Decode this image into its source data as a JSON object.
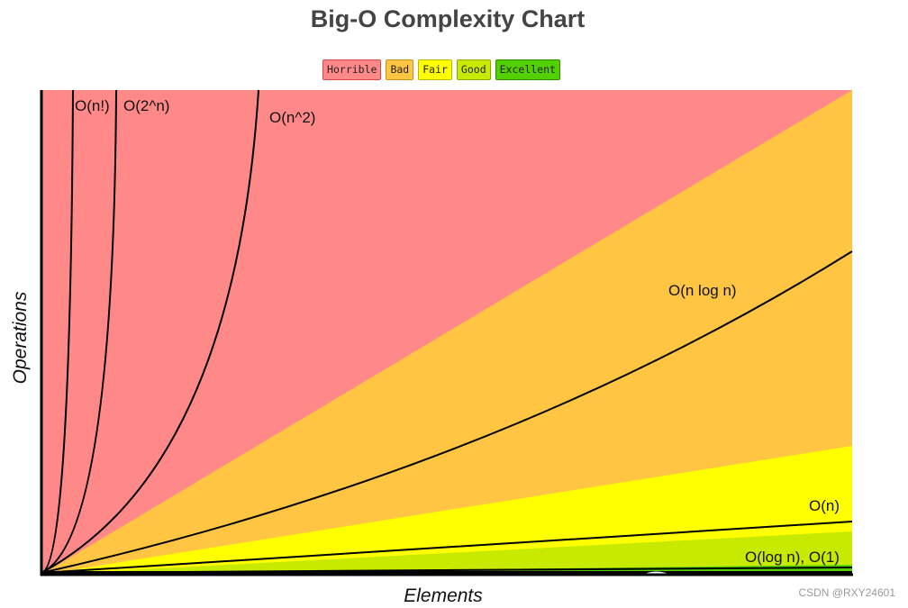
{
  "title": "Big-O Complexity Chart",
  "legend": [
    {
      "label": "Horrible",
      "color": "#ff8989",
      "border": "#d84848"
    },
    {
      "label": "Bad",
      "color": "#ffc543",
      "border": "#c8911a"
    },
    {
      "label": "Fair",
      "color": "#ffff00",
      "border": "#b8b800"
    },
    {
      "label": "Good",
      "color": "#c8ea00",
      "border": "#8fa800"
    },
    {
      "label": "Excellent",
      "color": "#53d000",
      "border": "#2e8a00"
    }
  ],
  "watermark": "CSDN @RXY24601",
  "chart_data": {
    "type": "line",
    "title": "Big-O Complexity Chart",
    "xlabel": "Elements",
    "ylabel": "Operations",
    "grid": false,
    "legend_position": "top-center",
    "series": [
      {
        "name": "O(n!)"
      },
      {
        "name": "O(2^n)"
      },
      {
        "name": "O(n^2)"
      },
      {
        "name": "O(n log n)"
      },
      {
        "name": "O(n)"
      },
      {
        "name": "O(log n), O(1)"
      }
    ],
    "regions": [
      "Horrible",
      "Bad",
      "Fair",
      "Good",
      "Excellent"
    ]
  }
}
